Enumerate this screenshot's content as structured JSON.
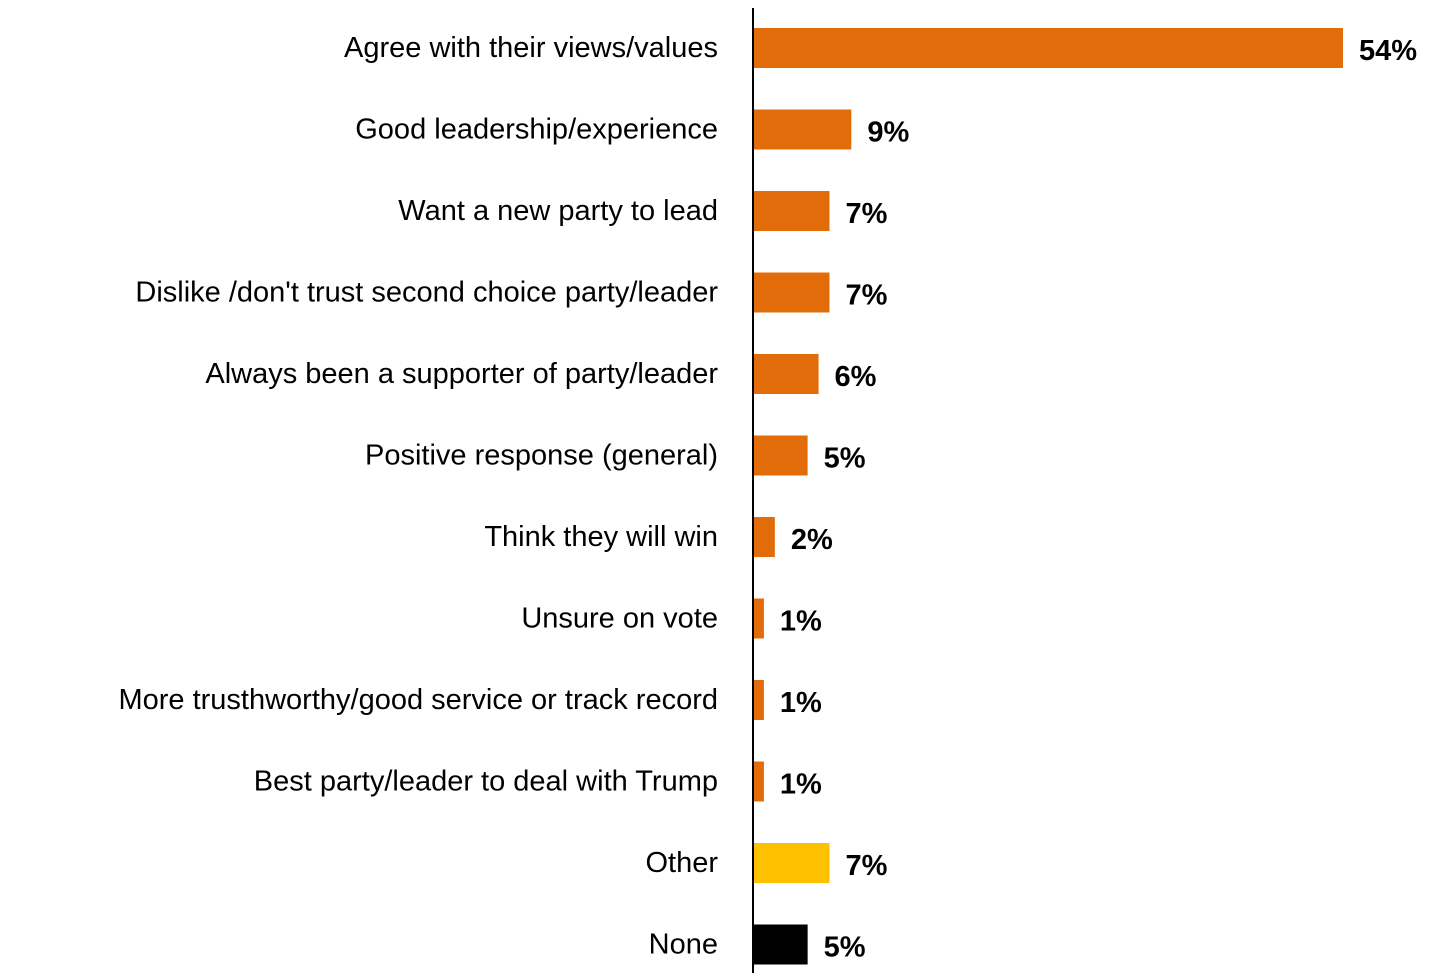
{
  "chart_data": {
    "type": "bar",
    "orientation": "horizontal",
    "categories": [
      "Agree with their views/values",
      "Good leadership/experience",
      "Want a new party to lead",
      "Dislike /don't trust second choice party/leader",
      "Always been a supporter of party/leader",
      "Positive response (general)",
      "Think they will win",
      "Unsure on vote",
      "More trusthworthy/good service or track record",
      "Best party/leader to deal with Trump",
      "Other",
      "None"
    ],
    "values": [
      54,
      9,
      7,
      7,
      6,
      5,
      2,
      1,
      1,
      1,
      7,
      5
    ],
    "value_labels": [
      "54%",
      "9%",
      "7%",
      "7%",
      "6%",
      "5%",
      "2%",
      "1%",
      "1%",
      "1%",
      "7%",
      "5%"
    ],
    "bar_colors": [
      "#E36C0A",
      "#E36C0A",
      "#E36C0A",
      "#E36C0A",
      "#E36C0A",
      "#E36C0A",
      "#E36C0A",
      "#E36C0A",
      "#E36C0A",
      "#E36C0A",
      "#FFC000",
      "#000000"
    ],
    "xlim": [
      0,
      54
    ],
    "grid": false,
    "legend": "none",
    "axis_color": "#000000"
  }
}
